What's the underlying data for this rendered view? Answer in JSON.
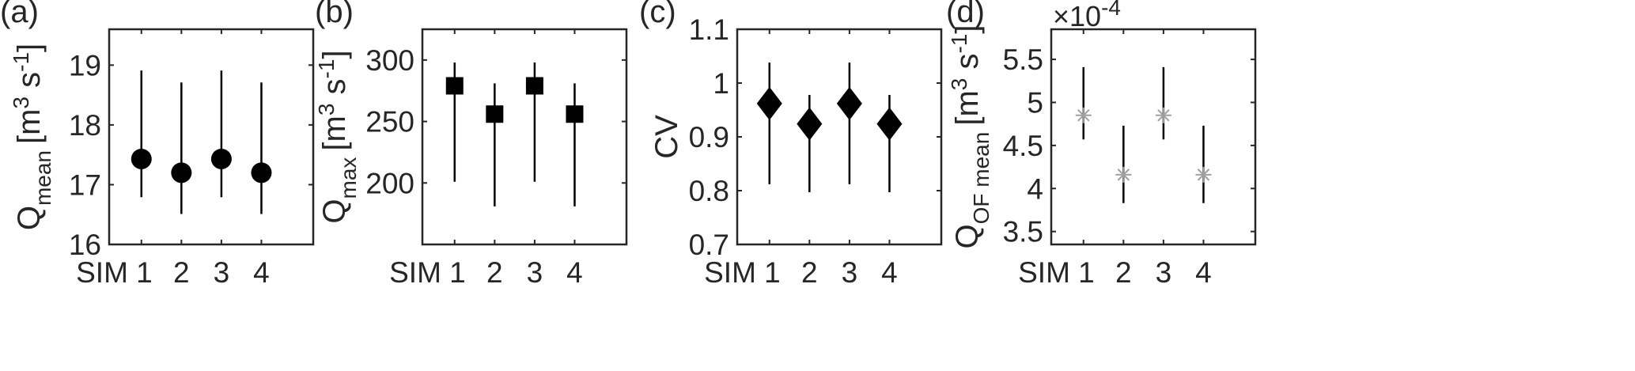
{
  "chart_data": [
    {
      "type": "scatter",
      "panel_label": "(a)",
      "ylabel": {
        "main": "Q",
        "sub": "mean",
        "unit": "[m",
        "u1": "3",
        "u2": " s",
        "u3": "-1",
        "u4": "]"
      },
      "categories": [
        "SIM 1",
        "2",
        "3",
        "4"
      ],
      "ylim": [
        16,
        19.6
      ],
      "yticks": [
        16,
        17,
        18,
        19
      ],
      "ytick_labels": [
        "16",
        "17",
        "18",
        "19"
      ],
      "marker": "circle",
      "marker_color": "#000000",
      "values": [
        17.43,
        17.2,
        17.43,
        17.2
      ],
      "err_low": [
        16.79,
        16.51,
        16.79,
        16.51
      ],
      "err_high": [
        18.91,
        18.71,
        18.91,
        18.71
      ]
    },
    {
      "type": "scatter",
      "panel_label": "(b)",
      "ylabel": {
        "main": "Q",
        "sub": "max",
        "unit": "[m",
        "u1": "3",
        "u2": " s",
        "u3": "-1",
        "u4": "]"
      },
      "categories": [
        "SIM 1",
        "2",
        "3",
        "4"
      ],
      "ylim": [
        150,
        325
      ],
      "yticks": [
        200,
        250,
        300
      ],
      "ytick_labels": [
        "200",
        "250",
        "300"
      ],
      "marker": "square",
      "marker_color": "#000000",
      "values": [
        279,
        256,
        279,
        256
      ],
      "err_low": [
        201,
        181,
        201,
        181
      ],
      "err_high": [
        298,
        281,
        298,
        281
      ]
    },
    {
      "type": "scatter",
      "panel_label": "(c)",
      "ylabel": {
        "main": "CV",
        "sub": "",
        "unit": "",
        "u1": "",
        "u2": "",
        "u3": "",
        "u4": ""
      },
      "categories": [
        "SIM 1",
        "2",
        "3",
        "4"
      ],
      "ylim": [
        0.7,
        1.1
      ],
      "yticks": [
        0.7,
        0.8,
        0.9,
        1.0,
        1.1
      ],
      "ytick_labels": [
        "0.7",
        "0.8",
        "0.9",
        "1",
        "1.1"
      ],
      "marker": "diamond",
      "marker_color": "#000000",
      "values": [
        0.962,
        0.924,
        0.962,
        0.924
      ],
      "err_low": [
        0.812,
        0.797,
        0.812,
        0.797
      ],
      "err_high": [
        1.038,
        0.978,
        1.038,
        0.978
      ]
    },
    {
      "type": "scatter",
      "panel_label": "(d)",
      "ylabel": {
        "main": "Q",
        "sub": "OF mean",
        "unit": "[m",
        "u1": "3",
        "u2": " s",
        "u3": "-1",
        "u4": "]"
      },
      "exponent": {
        "prefix": "×10",
        "power": "-4"
      },
      "categories": [
        "SIM 1",
        "2",
        "3",
        "4"
      ],
      "ylim": [
        3.35,
        5.85
      ],
      "yticks": [
        3.5,
        4.0,
        4.5,
        5.0,
        5.5
      ],
      "ytick_labels": [
        "3.5",
        "4",
        "4.5",
        "5",
        "5.5"
      ],
      "marker": "asterisk",
      "marker_color": "#a0a0a0",
      "values": [
        4.85,
        4.16,
        4.85,
        4.16
      ],
      "err_low": [
        4.57,
        3.83,
        4.57,
        3.83
      ],
      "err_high": [
        5.41,
        4.73,
        5.41,
        4.73
      ]
    }
  ]
}
